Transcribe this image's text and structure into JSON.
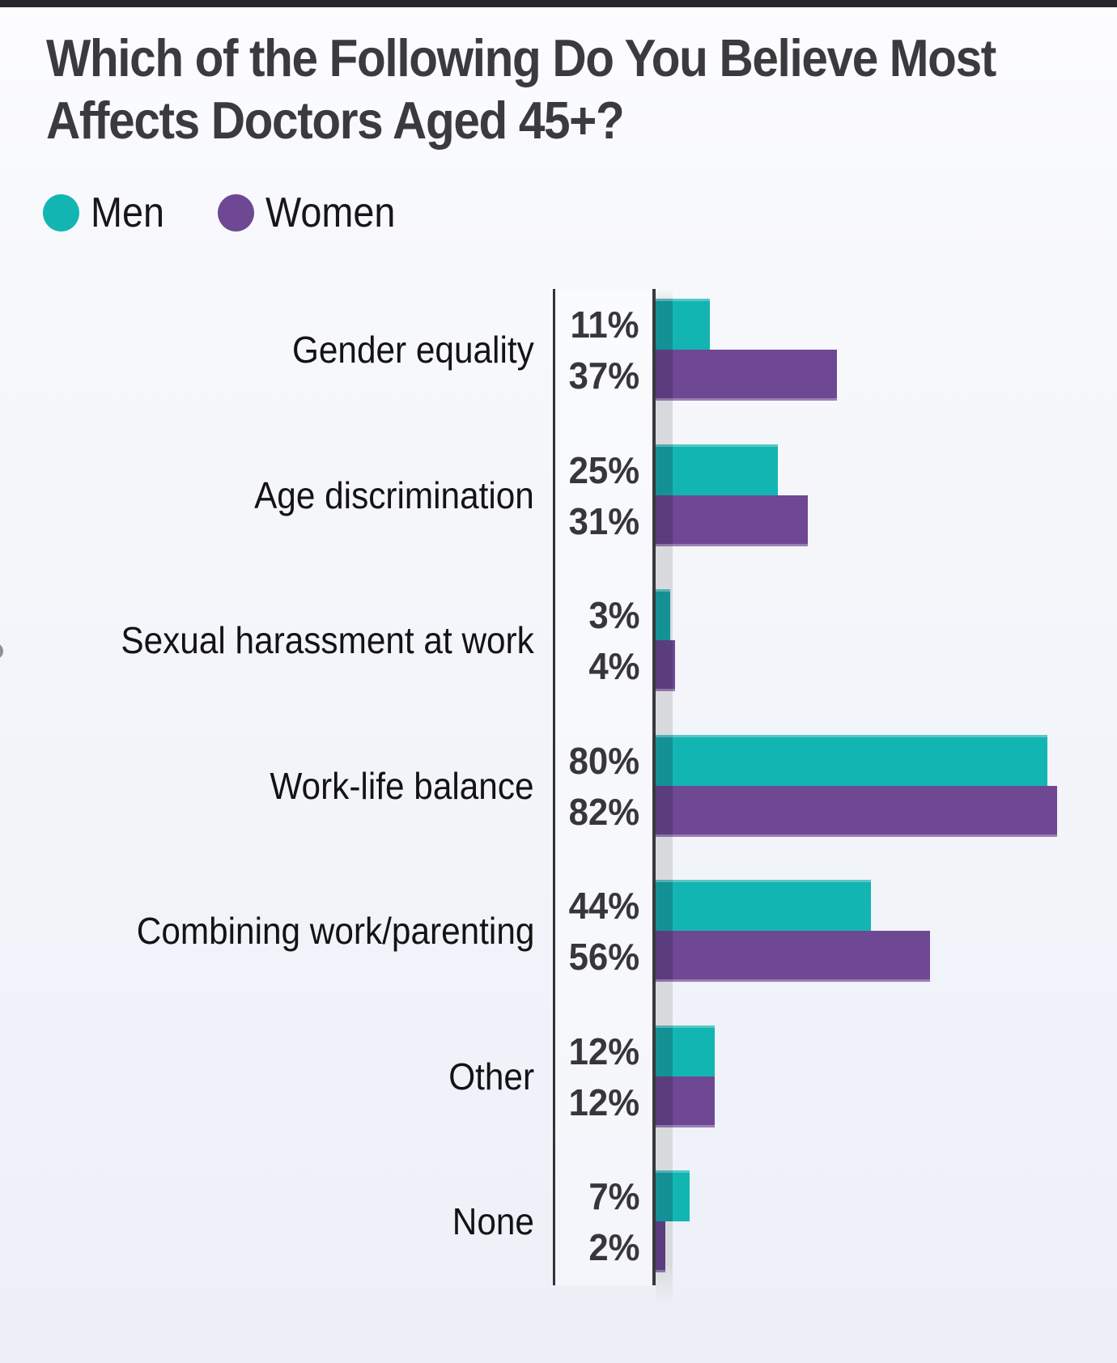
{
  "page": {
    "top_bar_color": "#26262e"
  },
  "title_lines": [
    "Which of the Following Do You Believe Most",
    "Affects Doctors Aged 45+?"
  ],
  "legend": {
    "items": [
      {
        "label": "Men",
        "color": "#13b5b2"
      },
      {
        "label": "Women",
        "color": "#6f4894"
      }
    ]
  },
  "chart_data": {
    "type": "bar",
    "orientation": "horizontal",
    "title": "Which of the Following Do You Believe Most Affects Doctors Aged 45+?",
    "categories": [
      "Gender equality",
      "Age discrimination",
      "Sexual harassment at work",
      "Work-life balance",
      "Combining work/parenting",
      "Other",
      "None"
    ],
    "series": [
      {
        "name": "Men",
        "color": "#13b5b2",
        "values": [
          11,
          25,
          3,
          80,
          44,
          12,
          7
        ]
      },
      {
        "name": "Women",
        "color": "#6f4894",
        "values": [
          37,
          31,
          4,
          82,
          56,
          12,
          2
        ]
      }
    ],
    "value_suffix": "%",
    "value_labels_shown": true,
    "xlim": [
      0,
      100
    ],
    "grid": false,
    "legend_position": "top-left"
  }
}
